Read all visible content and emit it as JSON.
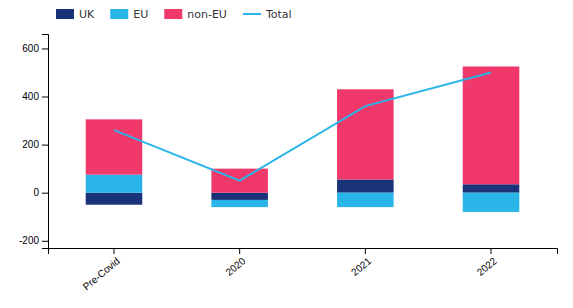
{
  "chart_data": {
    "type": "bar",
    "stacked": true,
    "categories": [
      "Pre-Covid",
      "2020",
      "2021",
      "2022"
    ],
    "series": [
      {
        "name": "UK",
        "color": "#1a3278",
        "values": [
          -50,
          -30,
          55,
          35
        ]
      },
      {
        "name": "EU",
        "color": "#29b5e8",
        "values": [
          75,
          -30,
          -60,
          -80
        ]
      },
      {
        "name": "non-EU",
        "color": "#f0386b",
        "values": [
          230,
          100,
          375,
          490
        ]
      },
      {
        "name": "Total",
        "type": "line",
        "color": "#29b5e8",
        "values": [
          260,
          50,
          360,
          500
        ]
      }
    ],
    "ylim": [
      -230,
      660
    ],
    "yticks": [
      -200,
      0,
      200,
      400,
      600
    ],
    "grid": false,
    "legend": "top-left"
  }
}
